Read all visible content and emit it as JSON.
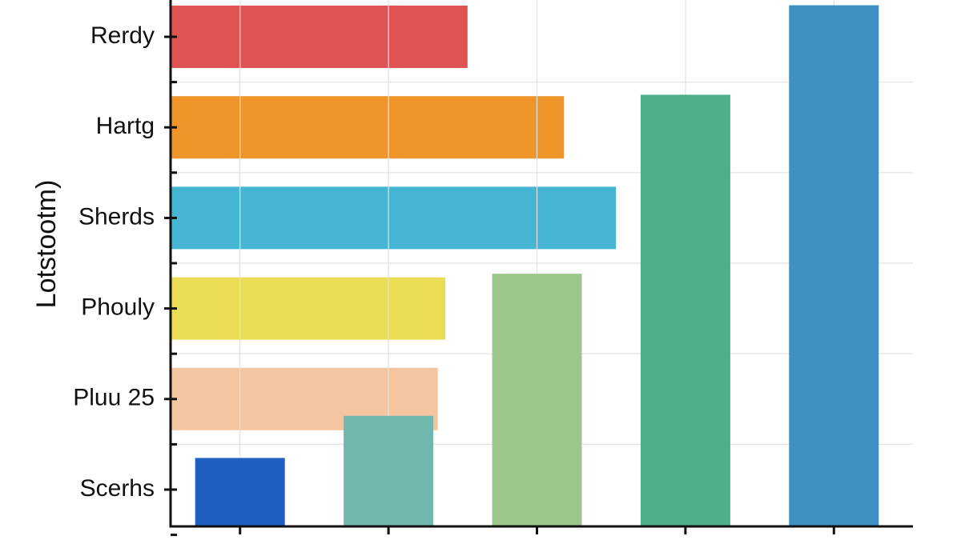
{
  "chart_data": [
    {
      "type": "hbar",
      "y_label": "Lotstootm)",
      "categories": [
        "Rerdy",
        "Hartg",
        "Sherds",
        "Phouly",
        "Pluu 25",
        "Scerhs"
      ],
      "values": [
        40,
        53,
        60,
        37,
        36,
        null
      ],
      "colors": [
        "#e05353",
        "#ee9429",
        "#45b5d3",
        "#ebdc56",
        "#f3c6a1",
        "#ffffff"
      ],
      "xlim": [
        0,
        100
      ],
      "grid": true
    },
    {
      "type": "bar",
      "categories": [
        null,
        null,
        null,
        null,
        null
      ],
      "values": [
        13,
        21,
        48,
        82,
        99
      ],
      "colors": [
        "#1f5fbf",
        "#70b8ad",
        "#9cc78b",
        "#4caf87",
        "#3c90c2"
      ],
      "ylim": [
        0,
        100
      ],
      "grid": true
    }
  ]
}
